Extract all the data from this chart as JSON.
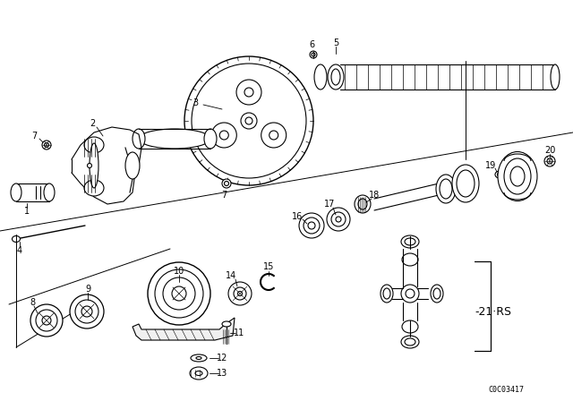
{
  "background_color": "#ffffff",
  "line_color": "#000000",
  "catalog_code": "C0C03417",
  "rs_label": "-21·RS",
  "fig_w": 6.4,
  "fig_h": 4.48,
  "dpi": 100
}
